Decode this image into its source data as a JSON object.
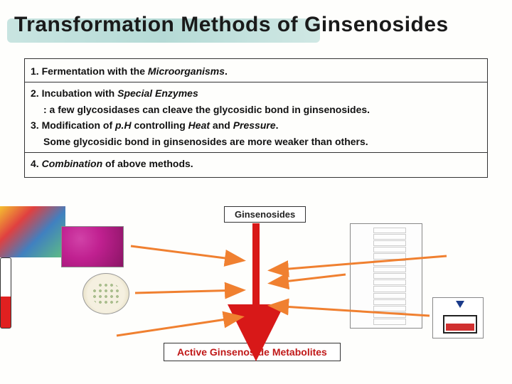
{
  "title": "Transformation Methods of Ginsenosides",
  "methods": {
    "line1_prefix": "1. Fermentation with the ",
    "line1_em": "Microorganisms",
    "line1_suffix": ".",
    "line2_prefix": "2. Incubation with ",
    "line2_em": "Special Enzymes",
    "line2b": ": a few glycosidases can cleave the glycosidic bond in ginsenosides.",
    "line3_prefix": "3. Modification of ",
    "line3_em1": "p.H",
    "line3_mid": " controlling ",
    "line3_em2": "Heat",
    "line3_mid2": " and ",
    "line3_em3": "Pressure",
    "line3_suffix": ".",
    "line3b": "Some glycosidic bond in ginsenosides are more weaker than others.",
    "line4_prefix": "4. ",
    "line4_em": "Combination",
    "line4_suffix": " of above methods."
  },
  "diagram": {
    "top_label": "Ginsenosides",
    "bottom_label": "Active Ginsenoside Metabolites",
    "arrow_color_center": "#d81818",
    "arrow_color_side": "#f08030",
    "ph_rows": 14
  },
  "colors": {
    "bg": "#fefefc",
    "highlight": "#a8d4cf",
    "text": "#111111",
    "accent_red": "#c01818"
  }
}
